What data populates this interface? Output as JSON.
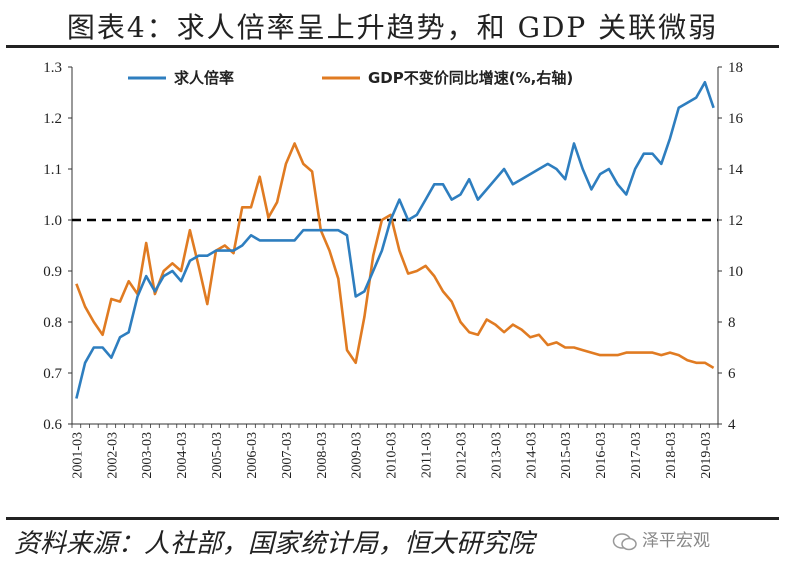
{
  "title": "图表4：求人倍率呈上升趋势，和 GDP 关联微弱",
  "source": "资料来源：人社部，国家统计局，恒大研究院",
  "watermark": "泽平宏观",
  "chart_data": {
    "type": "line",
    "x": [
      "2001-03",
      "2001-06",
      "2001-09",
      "2001-12",
      "2002-03",
      "2002-06",
      "2002-09",
      "2002-12",
      "2003-03",
      "2003-06",
      "2003-09",
      "2003-12",
      "2004-03",
      "2004-06",
      "2004-09",
      "2004-12",
      "2005-03",
      "2005-06",
      "2005-09",
      "2005-12",
      "2006-03",
      "2006-06",
      "2006-09",
      "2006-12",
      "2007-03",
      "2007-06",
      "2007-09",
      "2007-12",
      "2008-03",
      "2008-06",
      "2008-09",
      "2008-12",
      "2009-03",
      "2009-06",
      "2009-09",
      "2009-12",
      "2010-03",
      "2010-06",
      "2010-09",
      "2010-12",
      "2011-03",
      "2011-06",
      "2011-09",
      "2011-12",
      "2012-03",
      "2012-06",
      "2012-09",
      "2012-12",
      "2013-03",
      "2013-06",
      "2013-09",
      "2013-12",
      "2014-03",
      "2014-06",
      "2014-09",
      "2014-12",
      "2015-03",
      "2015-06",
      "2015-09",
      "2015-12",
      "2016-03",
      "2016-06",
      "2016-09",
      "2016-12",
      "2017-03",
      "2017-06",
      "2017-09",
      "2017-12",
      "2018-03",
      "2018-06",
      "2018-09",
      "2018-12",
      "2019-03",
      "2019-06"
    ],
    "x_tick_labels": [
      "2001-03",
      "2002-03",
      "2003-03",
      "2004-03",
      "2005-03",
      "2006-03",
      "2007-03",
      "2008-03",
      "2009-03",
      "2010-03",
      "2011-03",
      "2012-03",
      "2013-03",
      "2014-03",
      "2015-03",
      "2016-03",
      "2017-03",
      "2018-03",
      "2019-03"
    ],
    "series": [
      {
        "name": "求人倍率",
        "axis": "left",
        "color": "#2e7ebf",
        "values": [
          0.65,
          0.72,
          0.75,
          0.75,
          0.73,
          0.77,
          0.78,
          0.85,
          0.89,
          0.86,
          0.89,
          0.9,
          0.88,
          0.92,
          0.93,
          0.93,
          0.94,
          0.94,
          0.94,
          0.95,
          0.97,
          0.96,
          0.96,
          0.96,
          0.96,
          0.96,
          0.98,
          0.98,
          0.98,
          0.98,
          0.98,
          0.97,
          0.85,
          0.86,
          0.9,
          0.94,
          1.0,
          1.04,
          1.0,
          1.01,
          1.04,
          1.07,
          1.07,
          1.04,
          1.05,
          1.08,
          1.04,
          1.06,
          1.08,
          1.1,
          1.07,
          1.08,
          1.09,
          1.1,
          1.11,
          1.1,
          1.08,
          1.15,
          1.1,
          1.06,
          1.09,
          1.1,
          1.07,
          1.05,
          1.1,
          1.13,
          1.13,
          1.11,
          1.16,
          1.22,
          1.23,
          1.24,
          1.27,
          1.22
        ]
      },
      {
        "name": "GDP不变价同比增速(%,右轴)",
        "axis": "right",
        "color": "#e07b22",
        "values": [
          9.5,
          8.6,
          8.0,
          7.5,
          8.9,
          8.8,
          9.6,
          9.1,
          11.1,
          9.1,
          10.0,
          10.3,
          10.0,
          11.6,
          10.2,
          8.7,
          10.8,
          11.0,
          10.7,
          12.5,
          12.5,
          13.7,
          12.1,
          12.7,
          14.2,
          15.0,
          14.2,
          13.9,
          11.6,
          10.8,
          9.7,
          6.9,
          6.4,
          8.2,
          10.6,
          12.0,
          12.2,
          10.8,
          9.9,
          10.0,
          10.2,
          9.8,
          9.2,
          8.8,
          8.0,
          7.6,
          7.5,
          8.1,
          7.9,
          7.6,
          7.9,
          7.7,
          7.4,
          7.5,
          7.1,
          7.2,
          7.0,
          7.0,
          6.9,
          6.8,
          6.7,
          6.7,
          6.7,
          6.8,
          6.8,
          6.8,
          6.8,
          6.7,
          6.8,
          6.7,
          6.5,
          6.4,
          6.4,
          6.2
        ]
      }
    ],
    "left_axis": {
      "ylim": [
        0.6,
        1.3
      ],
      "ticks": [
        "0.6",
        "0.7",
        "0.8",
        "0.9",
        "1.0",
        "1.1",
        "1.2",
        "1.3"
      ]
    },
    "right_axis": {
      "ylim": [
        4,
        18
      ],
      "ticks": [
        "4",
        "6",
        "8",
        "10",
        "12",
        "14",
        "16",
        "18"
      ]
    },
    "reference_line": {
      "axis": "left",
      "y": 1.0,
      "style": "dashed",
      "color": "#000000"
    },
    "legend": {
      "placement": "top",
      "entries": [
        "求人倍率",
        "GDP不变价同比增速(%,右轴)"
      ]
    },
    "grid": false
  }
}
